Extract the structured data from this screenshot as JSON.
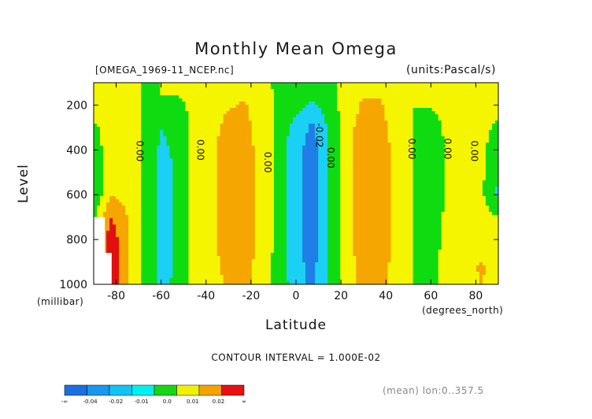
{
  "chart_data": {
    "type": "heatmap",
    "title": "Monthly Mean Omega",
    "file_label": "[OMEGA_1969-11_NCEP.nc]",
    "units_label": "(units:Pascal/s)",
    "xlabel": "Latitude",
    "xunit": "(degrees_north)",
    "ylabel": "Level",
    "yunit": "(millibar)",
    "contour_interval": "CONTOUR INTERVAL = 1.000E-02",
    "mean_note": "(mean) lon:0..357.5",
    "xlim": [
      -90,
      90
    ],
    "ylim": [
      1000,
      100
    ],
    "x_ticks": [
      -80,
      -60,
      -40,
      -20,
      0,
      20,
      40,
      60,
      80
    ],
    "x_tick_labels": [
      "-80",
      "-60",
      "-40",
      "-20",
      "0",
      "20",
      "40",
      "60",
      "80"
    ],
    "y_ticks": [
      200,
      400,
      600,
      800,
      1000
    ],
    "y_tick_labels": [
      "200",
      "400",
      "600",
      "800",
      "1000"
    ],
    "levels": [
      1000,
      925,
      850,
      700,
      600,
      500,
      400,
      300,
      250,
      200,
      150,
      100
    ],
    "latitudes": [
      -90,
      -82.5,
      -75,
      -67.5,
      -60,
      -52.5,
      -45,
      -37.5,
      -30,
      -22.5,
      -15,
      -7.5,
      0,
      7.5,
      15,
      22.5,
      30,
      37.5,
      45,
      52.5,
      60,
      67.5,
      75,
      82.5,
      90
    ],
    "omega": [
      [
        0.0,
        0.03,
        0.01,
        -0.001,
        -0.012,
        -0.008,
        0.004,
        0.007,
        0.011,
        0.013,
        0.004,
        -0.003,
        -0.016,
        -0.022,
        -0.007,
        0.004,
        0.014,
        0.012,
        0.006,
        -0.001,
        -0.008,
        0.009,
        0.003,
        0.011,
        0.002
      ],
      [
        0.0,
        0.032,
        0.011,
        -0.002,
        -0.013,
        -0.009,
        0.005,
        0.008,
        0.012,
        0.014,
        0.005,
        -0.004,
        -0.017,
        -0.023,
        -0.008,
        0.005,
        0.015,
        0.013,
        0.007,
        -0.001,
        -0.009,
        0.01,
        0.004,
        0.012,
        0.002
      ],
      [
        0.0,
        0.03,
        0.012,
        -0.002,
        -0.013,
        -0.009,
        0.005,
        0.009,
        0.012,
        0.014,
        0.006,
        -0.004,
        -0.017,
        -0.024,
        -0.009,
        0.005,
        0.016,
        0.014,
        0.007,
        -0.001,
        -0.009,
        0.008,
        0.005,
        0.007,
        0.001
      ],
      [
        -0.002,
        0.02,
        0.01,
        -0.002,
        -0.013,
        -0.009,
        0.005,
        0.009,
        0.013,
        0.015,
        0.006,
        -0.004,
        -0.018,
        -0.025,
        -0.009,
        0.006,
        0.016,
        0.014,
        0.007,
        -0.001,
        -0.009,
        0.004,
        0.004,
        0.004,
        0.0
      ],
      [
        -0.011,
        0.01,
        0.007,
        -0.002,
        -0.013,
        -0.009,
        0.005,
        0.009,
        0.013,
        0.015,
        0.006,
        -0.004,
        -0.018,
        -0.025,
        -0.009,
        0.006,
        0.016,
        0.014,
        0.007,
        -0.001,
        -0.009,
        0.002,
        0.003,
        0.002,
        -0.012
      ],
      [
        -0.009,
        0.007,
        0.006,
        -0.001,
        -0.013,
        -0.009,
        0.005,
        0.009,
        0.013,
        0.015,
        0.006,
        -0.004,
        -0.018,
        -0.025,
        -0.009,
        0.006,
        0.016,
        0.014,
        0.007,
        -0.001,
        -0.009,
        0.002,
        0.002,
        0.002,
        -0.01
      ],
      [
        -0.006,
        0.006,
        0.005,
        -0.001,
        -0.012,
        -0.008,
        0.005,
        0.009,
        0.013,
        0.014,
        0.006,
        -0.004,
        -0.017,
        -0.024,
        -0.009,
        0.006,
        0.016,
        0.014,
        0.007,
        -0.001,
        -0.008,
        0.002,
        0.002,
        0.002,
        -0.006
      ],
      [
        -0.002,
        0.005,
        0.005,
        -0.001,
        -0.01,
        -0.007,
        0.004,
        0.008,
        0.012,
        0.013,
        0.005,
        -0.003,
        -0.015,
        -0.022,
        -0.008,
        0.006,
        0.015,
        0.013,
        0.006,
        -0.001,
        -0.006,
        0.003,
        0.002,
        0.003,
        -0.002
      ],
      [
        0.002,
        0.005,
        0.004,
        -0.001,
        -0.004,
        -0.005,
        0.003,
        0.007,
        0.011,
        0.012,
        0.004,
        -0.002,
        -0.01,
        -0.018,
        -0.006,
        0.005,
        0.013,
        0.012,
        0.005,
        0.0,
        -0.002,
        0.003,
        0.003,
        0.004,
        0.001
      ],
      [
        0.004,
        0.006,
        0.004,
        -0.001,
        0.0,
        -0.002,
        0.003,
        0.005,
        0.009,
        0.011,
        0.003,
        -0.001,
        -0.006,
        -0.012,
        -0.004,
        0.004,
        0.012,
        0.011,
        0.004,
        0.0,
        0.001,
        0.003,
        0.004,
        0.004,
        0.002
      ],
      [
        0.004,
        0.006,
        0.005,
        -0.001,
        0.0,
        0.0,
        0.003,
        0.004,
        0.006,
        0.009,
        0.002,
        -0.001,
        -0.003,
        -0.006,
        -0.002,
        0.003,
        0.009,
        0.009,
        0.003,
        0.0,
        0.001,
        0.002,
        0.004,
        0.004,
        0.002
      ],
      [
        0.003,
        0.005,
        0.004,
        -0.001,
        0.0,
        0.0,
        0.002,
        0.003,
        0.004,
        0.006,
        0.001,
        -0.001,
        -0.002,
        -0.003,
        -0.001,
        0.002,
        0.006,
        0.006,
        0.002,
        0.0,
        0.001,
        0.002,
        0.003,
        0.003,
        0.002
      ]
    ],
    "contour_labels": [
      "0.00",
      "0.00",
      "0.00",
      "-0.02",
      "0.00",
      "0.00",
      "0.00",
      "0.00"
    ],
    "colorbar": {
      "colors": [
        "#1c6fe0",
        "#1797ef",
        "#12c3f5",
        "#00f0f0",
        "#16d616",
        "#f0f000",
        "#f4a300",
        "#e81010"
      ],
      "labels": [
        "-∞",
        "-0.04",
        "-0.02",
        "-0.01",
        "0.0",
        "0.01",
        "0.02",
        "∞"
      ]
    },
    "fill_bins": [
      {
        "max": -0.02,
        "color": "#1f7fe6"
      },
      {
        "max": -0.01,
        "color": "#1ad0f5"
      },
      {
        "max": 0.0,
        "color": "#0fdc10"
      },
      {
        "max": 0.01,
        "color": "#f5f500"
      },
      {
        "max": 0.02,
        "color": "#f5a600"
      },
      {
        "max": 1.0,
        "color": "#e01010"
      }
    ]
  }
}
